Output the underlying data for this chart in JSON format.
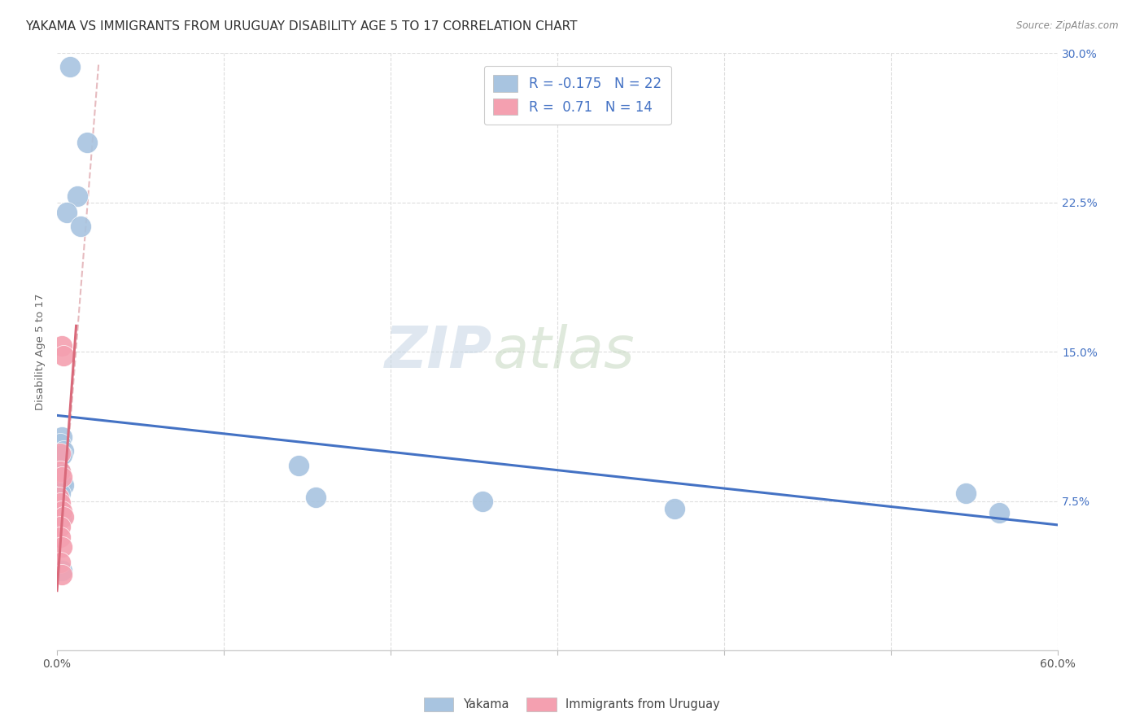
{
  "title": "YAKAMA VS IMMIGRANTS FROM URUGUAY DISABILITY AGE 5 TO 17 CORRELATION CHART",
  "source": "Source: ZipAtlas.com",
  "ylabel": "Disability Age 5 to 17",
  "xlim": [
    0,
    0.6
  ],
  "ylim": [
    0,
    0.3
  ],
  "xticks": [
    0.0,
    0.1,
    0.2,
    0.3,
    0.4,
    0.5,
    0.6
  ],
  "xticklabels": [
    "0.0%",
    "",
    "",
    "",
    "",
    "",
    "60.0%"
  ],
  "yticks_right": [
    0.075,
    0.15,
    0.225,
    0.3
  ],
  "yticklabels_right": [
    "7.5%",
    "15.0%",
    "22.5%",
    "30.0%"
  ],
  "legend_labels": [
    "Yakama",
    "Immigrants from Uruguay"
  ],
  "R_yakama": -0.175,
  "N_yakama": 22,
  "R_uruguay": 0.71,
  "N_uruguay": 14,
  "yakama_color": "#a8c4e0",
  "uruguay_color": "#f4a0b0",
  "trend_yakama_color": "#4472c4",
  "trend_uruguay_color": "#d9697a",
  "trend_uruguay_dashed_color": "#e0aab0",
  "watermark_zip": "ZIP",
  "watermark_atlas": "atlas",
  "watermark_color_zip": "#ccd9e8",
  "watermark_color_atlas": "#c8d4c0",
  "background_color": "#ffffff",
  "title_fontsize": 11,
  "axis_fontsize": 9,
  "yakama_x": [
    0.008,
    0.018,
    0.012,
    0.006,
    0.014,
    0.003,
    0.002,
    0.004,
    0.003,
    0.002,
    0.002,
    0.003,
    0.004,
    0.002,
    0.003,
    0.145,
    0.155,
    0.255,
    0.37,
    0.545,
    0.565,
    0.003
  ],
  "yakama_y": [
    0.293,
    0.255,
    0.228,
    0.22,
    0.213,
    0.107,
    0.104,
    0.1,
    0.098,
    0.09,
    0.086,
    0.084,
    0.083,
    0.079,
    0.067,
    0.093,
    0.077,
    0.075,
    0.071,
    0.079,
    0.069,
    0.04
  ],
  "uruguay_x": [
    0.003,
    0.004,
    0.002,
    0.002,
    0.003,
    0.001,
    0.002,
    0.003,
    0.004,
    0.002,
    0.002,
    0.003,
    0.002,
    0.003
  ],
  "uruguay_y": [
    0.153,
    0.148,
    0.099,
    0.09,
    0.087,
    0.077,
    0.074,
    0.07,
    0.067,
    0.062,
    0.057,
    0.052,
    0.044,
    0.038
  ],
  "trend_yakama_x0": 0.0,
  "trend_yakama_y0": 0.118,
  "trend_yakama_x1": 0.6,
  "trend_yakama_y1": 0.063,
  "trend_uruguay_solid_x0": 0.0,
  "trend_uruguay_solid_y0": 0.03,
  "trend_uruguay_solid_x1": 0.0115,
  "trend_uruguay_solid_y1": 0.163,
  "trend_uruguay_dashed_x0": 0.0,
  "trend_uruguay_dashed_y0": 0.03,
  "trend_uruguay_dashed_x1": 0.025,
  "trend_uruguay_dashed_y1": 0.295
}
